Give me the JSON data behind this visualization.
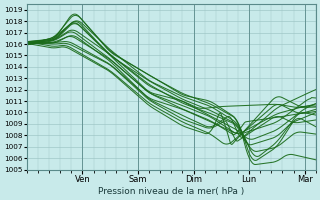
{
  "bg_color": "#c8eaea",
  "grid_color": "#a0c8c8",
  "line_color": "#1a6b1a",
  "xlabel_text": "Pression niveau de la mer( hPa )",
  "x_ticks": [
    1,
    2,
    3,
    4,
    5
  ],
  "x_tick_labels": [
    "Ven",
    "Sam",
    "Dim",
    "Lun",
    "Mar"
  ],
  "ylim": [
    1005,
    1019.5
  ],
  "yticks": [
    1005,
    1006,
    1007,
    1008,
    1009,
    1010,
    1011,
    1012,
    1013,
    1014,
    1015,
    1016,
    1017,
    1018,
    1019
  ],
  "xlim": [
    0,
    5.2
  ],
  "lines": [
    {
      "seed": 1,
      "knots_x": [
        0.0,
        0.5,
        0.85,
        1.5,
        2.2,
        2.8,
        3.3,
        3.8,
        4.05,
        4.5,
        4.85,
        5.2
      ],
      "knots_y": [
        1016.0,
        1016.5,
        1019.0,
        1015.4,
        1013.2,
        1011.8,
        1010.8,
        1009.5,
        1005.5,
        1007.0,
        1009.5,
        1009.0
      ]
    },
    {
      "seed": 2,
      "knots_x": [
        0.0,
        0.5,
        0.9,
        1.5,
        2.2,
        2.8,
        3.3,
        3.8,
        4.1,
        4.5,
        4.9,
        5.2
      ],
      "knots_y": [
        1016.0,
        1016.6,
        1018.5,
        1015.3,
        1013.0,
        1011.5,
        1010.5,
        1009.2,
        1006.0,
        1007.5,
        1010.0,
        1009.5
      ]
    },
    {
      "seed": 3,
      "knots_x": [
        0.0,
        0.5,
        0.88,
        1.5,
        2.2,
        2.8,
        3.3,
        3.8,
        4.05,
        4.5,
        4.85,
        5.2
      ],
      "knots_y": [
        1016.0,
        1016.4,
        1018.2,
        1015.2,
        1012.8,
        1011.2,
        1010.2,
        1009.0,
        1006.5,
        1007.0,
        1008.5,
        1008.0
      ]
    },
    {
      "seed": 4,
      "knots_x": [
        0.0,
        0.5,
        0.82,
        1.5,
        2.2,
        2.8,
        3.3,
        3.8,
        3.95,
        4.5,
        4.75,
        5.2
      ],
      "knots_y": [
        1016.0,
        1016.3,
        1017.5,
        1015.0,
        1012.5,
        1011.0,
        1010.0,
        1008.8,
        1007.0,
        1008.0,
        1009.0,
        1010.0
      ]
    },
    {
      "seed": 5,
      "knots_x": [
        0.0,
        0.5,
        0.85,
        1.5,
        2.2,
        2.8,
        3.3,
        3.8,
        4.0,
        4.5,
        5.0,
        5.2
      ],
      "knots_y": [
        1016.0,
        1016.4,
        1017.8,
        1015.1,
        1012.3,
        1010.8,
        1009.8,
        1008.5,
        1007.5,
        1008.5,
        1010.5,
        1010.8
      ]
    },
    {
      "seed": 6,
      "knots_x": [
        0.0,
        0.5,
        0.8,
        1.5,
        2.2,
        2.8,
        3.3,
        3.8,
        3.9,
        4.5,
        5.1,
        5.2
      ],
      "knots_y": [
        1016.0,
        1016.2,
        1017.2,
        1014.8,
        1012.0,
        1010.5,
        1009.5,
        1008.2,
        1008.0,
        1009.2,
        1011.0,
        1011.2
      ]
    },
    {
      "seed": 7,
      "knots_x": [
        0.0,
        0.5,
        0.78,
        1.5,
        2.2,
        2.8,
        3.3,
        3.8,
        3.85,
        4.5,
        4.95,
        5.2
      ],
      "knots_y": [
        1016.0,
        1016.1,
        1016.8,
        1014.6,
        1011.8,
        1010.3,
        1009.3,
        1008.0,
        1009.0,
        1009.5,
        1010.0,
        1010.3
      ]
    },
    {
      "seed": 8,
      "knots_x": [
        0.0,
        0.5,
        0.75,
        1.5,
        2.2,
        2.8,
        3.3,
        3.8,
        3.8,
        4.5,
        5.05,
        5.2
      ],
      "knots_y": [
        1016.0,
        1016.0,
        1016.5,
        1014.4,
        1011.5,
        1010.0,
        1009.0,
        1007.8,
        1008.5,
        1009.8,
        1010.5,
        1010.7
      ]
    },
    {
      "seed": 9,
      "knots_x": [
        0.0,
        0.5,
        0.83,
        1.5,
        2.2,
        2.8,
        3.3,
        3.8,
        3.7,
        4.5,
        5.0,
        5.2
      ],
      "knots_y": [
        1016.0,
        1016.2,
        1017.0,
        1014.5,
        1011.2,
        1009.8,
        1008.8,
        1007.5,
        1010.0,
        1010.5,
        1011.5,
        1011.8
      ]
    },
    {
      "seed": 10,
      "knots_x": [
        0.0,
        0.5,
        0.72,
        1.5,
        2.2,
        2.8,
        3.3,
        3.7,
        3.65,
        4.5,
        4.8,
        5.2
      ],
      "knots_y": [
        1016.0,
        1015.9,
        1016.3,
        1014.2,
        1011.0,
        1009.5,
        1008.5,
        1007.2,
        1009.5,
        1009.8,
        1009.0,
        1009.2
      ]
    },
    {
      "seed": 11,
      "knots_x": [
        0.0,
        0.5,
        0.7,
        1.5,
        2.2,
        2.8,
        3.3,
        3.6,
        3.6,
        4.5,
        4.9,
        5.2
      ],
      "knots_y": [
        1016.0,
        1015.8,
        1016.0,
        1014.0,
        1010.8,
        1009.2,
        1008.2,
        1007.0,
        1010.5,
        1010.8,
        1010.0,
        1010.2
      ]
    },
    {
      "seed": 12,
      "knots_x": [
        0.0,
        0.5,
        0.68,
        1.5,
        2.2,
        2.8,
        3.3,
        3.6,
        3.55,
        4.5,
        4.95,
        5.2
      ],
      "knots_y": [
        1016.0,
        1015.7,
        1015.8,
        1013.8,
        1010.5,
        1009.0,
        1008.0,
        1006.8,
        1011.0,
        1011.2,
        1010.5,
        1010.7
      ]
    },
    {
      "seed": 13,
      "knots_x": [
        0.0,
        0.5,
        0.87,
        1.5,
        2.2,
        2.8,
        3.3,
        3.8,
        4.02,
        4.5,
        4.7,
        5.2
      ],
      "knots_y": [
        1016.0,
        1016.5,
        1018.8,
        1015.3,
        1013.1,
        1011.6,
        1010.6,
        1009.3,
        1005.2,
        1005.8,
        1006.5,
        1006.0
      ]
    },
    {
      "seed": 14,
      "knots_x": [
        0.0,
        0.5,
        0.86,
        1.5,
        2.2,
        2.8,
        3.1,
        3.5,
        3.5,
        4.5,
        4.85,
        5.2
      ],
      "knots_y": [
        1016.0,
        1016.3,
        1018.0,
        1015.0,
        1012.0,
        1011.0,
        1010.5,
        1010.5,
        1010.5,
        1010.8,
        1010.3,
        1010.5
      ]
    }
  ]
}
